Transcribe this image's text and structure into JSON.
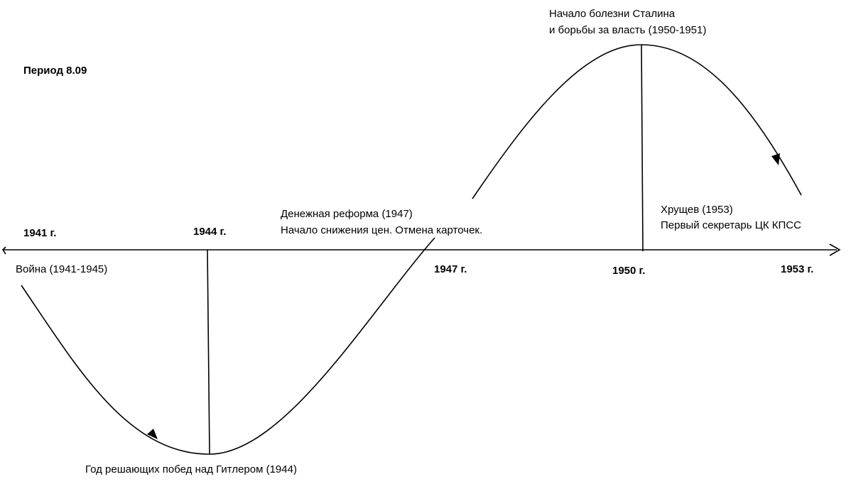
{
  "title": "Период 8.09",
  "axis_labels": [
    "1941 г.",
    "1944 г.",
    "1947 г.",
    "1950 г.",
    "1953 г."
  ],
  "events": [
    {
      "lines": [
        "Война (1941-1945)"
      ]
    },
    {
      "lines": [
        "Год решающих побед над Гитлером (1944)"
      ]
    },
    {
      "lines": [
        "Денежная реформа (1947)",
        "Начало снижения цен. Отмена карточек."
      ]
    },
    {
      "lines": [
        "Начало болезни Сталина",
        "и борьбы за власть (1950-1951)"
      ]
    },
    {
      "lines": [
        "Хрущев (1953)",
        "Первый секретарь ЦК КПСС"
      ]
    }
  ]
}
